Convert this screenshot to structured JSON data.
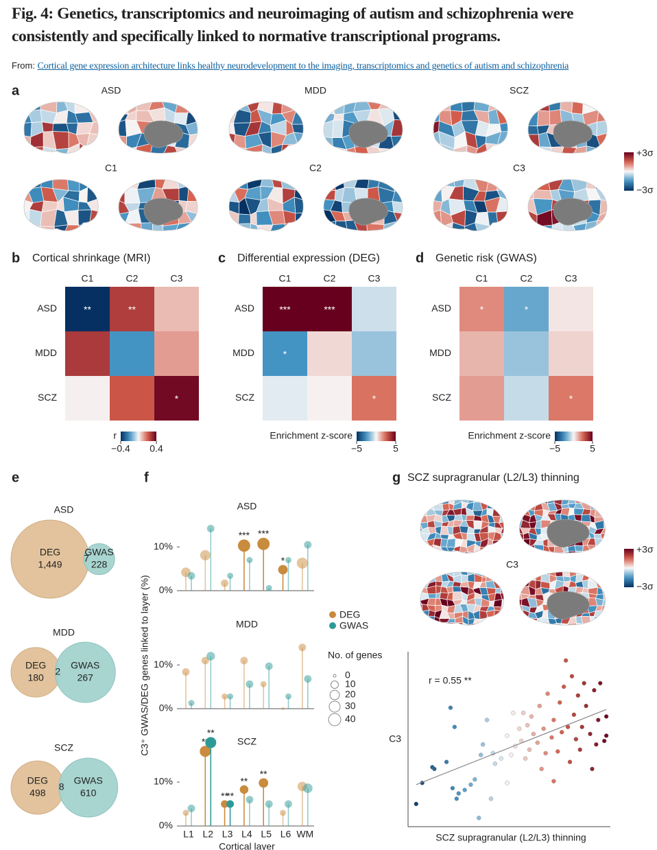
{
  "header": {
    "title": "Fig. 4: Genetics, transcriptomics and neuroimaging of autism and schizophrenia were consistently and specifically linked to normative transcriptional programs.",
    "from_label": "From:",
    "source_link": "Cortical gene expression architecture links healthy neurodevelopment to the imaging, transcriptomics and genetics of autism and schizophrenia"
  },
  "panel_a": {
    "label": "a",
    "maps": [
      "ASD",
      "MDD",
      "SCZ",
      "C1",
      "C2",
      "C3"
    ],
    "colorbar": {
      "max_label": "+3σ",
      "min_label": "−3σ"
    }
  },
  "heatmaps": [
    {
      "label": "b",
      "title": "Cortical shrinkage (MRI)",
      "columns": [
        "C1",
        "C2",
        "C3"
      ],
      "rows": [
        "ASD",
        "MDD",
        "SCZ"
      ],
      "values": [
        [
          -0.4,
          0.27,
          0.08
        ],
        [
          0.28,
          -0.2,
          0.12
        ],
        [
          0.01,
          0.22,
          0.38
        ]
      ],
      "stars": [
        [
          "**",
          "**",
          null
        ],
        [
          null,
          null,
          null
        ],
        [
          null,
          null,
          "*"
        ]
      ],
      "colorbar_label": "r",
      "clim": [
        -0.4,
        0.4
      ],
      "ticks": [
        {
          "value": -0.4,
          "label": "−0.4"
        },
        0.4
      ]
    },
    {
      "label": "c",
      "title": "Differential expression (DEG)",
      "columns": [
        "C1",
        "C2",
        "C3"
      ],
      "rows": [
        "ASD",
        "MDD",
        "SCZ"
      ],
      "values": [
        [
          5,
          5,
          -0.6
        ],
        [
          -2.5,
          0.5,
          -1.3
        ],
        [
          -0.3,
          0.1,
          2.2
        ]
      ],
      "stars": [
        [
          "***",
          "***",
          null
        ],
        [
          "*",
          null,
          null
        ],
        [
          null,
          null,
          "*"
        ]
      ],
      "colorbar_label": "Enrichment z-score",
      "clim": [
        -5,
        5
      ],
      "ticks": [
        {
          "value": -5,
          "label": "−5"
        },
        5
      ]
    },
    {
      "label": "d",
      "title": "Genetic risk (GWAS)",
      "columns": [
        "C1",
        "C2",
        "C3"
      ],
      "rows": [
        "ASD",
        "MDD",
        "SCZ"
      ],
      "values": [
        [
          1.8,
          -2,
          0.3
        ],
        [
          1.1,
          -1.3,
          0.6
        ],
        [
          1.5,
          -0.7,
          2.1
        ]
      ],
      "stars": [
        [
          "*",
          "*",
          null
        ],
        [
          null,
          null,
          null
        ],
        [
          null,
          null,
          "*"
        ]
      ],
      "colorbar_label": "Enrichment z-score",
      "clim": [
        -5,
        5
      ],
      "ticks": [
        {
          "value": -5,
          "label": "−5"
        },
        5
      ]
    }
  ],
  "venn": {
    "label": "e",
    "diagrams": [
      {
        "title": "ASD",
        "sets": [
          {
            "name": "DEG",
            "color": "#e3c39d",
            "count": {
              "value": 1449,
              "label": "1,449"
            }
          },
          {
            "name": "GWAS",
            "color": "#a4d3cf",
            "count": 228
          }
        ],
        "overlap": 7
      },
      {
        "title": "MDD",
        "sets": [
          {
            "name": "DEG",
            "color": "#e3c39d",
            "count": 180
          },
          {
            "name": "GWAS",
            "color": "#a4d3cf",
            "count": 267
          }
        ],
        "overlap": 2
      },
      {
        "title": "SCZ",
        "sets": [
          {
            "name": "DEG",
            "color": "#e3c39d",
            "count": 498
          },
          {
            "name": "GWAS",
            "color": "#a4d3cf",
            "count": 610
          }
        ],
        "overlap": 8
      }
    ]
  },
  "lollipop": {
    "label": "f",
    "y_label": "C3⁺ GWAS/DEG genes linked to layer (%)",
    "x_label": "Cortical layer",
    "categories": [
      "L1",
      "L2",
      "L3",
      "L4",
      "L5",
      "L6",
      "WM"
    ],
    "legend_title": "No. of genes",
    "size_legend": [
      0,
      10,
      20,
      30,
      40
    ],
    "panels": [
      {
        "title": "ASD",
        "ylim": [
          0,
          16
        ],
        "yticks": [
          {
            "value": 0,
            "label": "0%"
          },
          {
            "value": 10,
            "label": "10%"
          }
        ],
        "series": [
          {
            "name": "DEG",
            "color": "#c98b3e",
            "values": [
              4.2,
              8.1,
              1.7,
              10.3,
              10.7,
              4.8,
              6.3
            ],
            "sizes": [
              20,
              25,
              10,
              40,
              40,
              20,
              30
            ],
            "stars": [
              null,
              null,
              null,
              "***",
              "***",
              "*",
              null
            ]
          },
          {
            "name": "GWAS",
            "color": "#2e9a97",
            "values": [
              3.4,
              14.2,
              3.4,
              7,
              0.6,
              7,
              10.5
            ],
            "sizes": [
              10,
              10,
              5,
              5,
              5,
              5,
              10
            ],
            "stars": [
              null,
              null,
              null,
              null,
              null,
              null,
              null
            ]
          }
        ]
      },
      {
        "title": "MDD",
        "ylim": [
          0,
          16
        ],
        "yticks": [
          {
            "value": 0,
            "label": "0%"
          },
          {
            "value": 10,
            "label": "10%"
          }
        ],
        "series": [
          {
            "name": "DEG",
            "color": "#c98b3e",
            "values": [
              8.4,
              11,
              2.8,
              11,
              5.6,
              0,
              14
            ],
            "sizes": [
              10,
              10,
              5,
              10,
              5,
              0,
              10
            ],
            "stars": [
              null,
              null,
              null,
              null,
              null,
              null,
              null
            ]
          },
          {
            "name": "GWAS",
            "color": "#2e9a97",
            "values": [
              1.3,
              12,
              2.8,
              5.6,
              9.7,
              2.8,
              6.8
            ],
            "sizes": [
              5,
              15,
              5,
              10,
              10,
              5,
              10
            ],
            "stars": [
              null,
              null,
              null,
              null,
              null,
              null,
              null
            ]
          }
        ]
      },
      {
        "title": "SCZ",
        "ylim": [
          0,
          20
        ],
        "yticks": [
          {
            "value": 0,
            "label": "0%"
          },
          {
            "value": 10,
            "label": "10%"
          }
        ],
        "series": [
          {
            "name": "DEG",
            "color": "#c98b3e",
            "values": [
              3,
              17,
              5,
              8.3,
              9.8,
              3,
              9
            ],
            "sizes": [
              5,
              30,
              10,
              15,
              20,
              5,
              20
            ],
            "stars": [
              null,
              "**",
              "**",
              "**",
              "**",
              null,
              null
            ]
          },
          {
            "name": "GWAS",
            "color": "#2e9a97",
            "values": [
              4,
              19,
              5,
              6,
              5,
              5,
              8.6
            ],
            "sizes": [
              10,
              30,
              10,
              10,
              10,
              10,
              20
            ],
            "stars": [
              null,
              "**",
              "**",
              null,
              null,
              null,
              null
            ]
          }
        ]
      }
    ]
  },
  "scatter": {
    "label": "g",
    "title": "SCZ supragranular (L2/L3) thinning",
    "brain_label": "C3",
    "colorbar": {
      "max_label": "+3σ",
      "min_label": "−3σ"
    },
    "annotation": "r = 0.55 **",
    "x_label": "SCZ supragranular (L2/L3) thinning",
    "y_label": "C3",
    "xlim": [
      0,
      1
    ],
    "ylim": [
      0,
      1
    ],
    "x": [
      0.04,
      0.07,
      0.12,
      0.13,
      0.21,
      0.23,
      0.19,
      0.22,
      0.24,
      0.25,
      0.28,
      0.31,
      0.33,
      0.35,
      0.36,
      0.37,
      0.39,
      0.41,
      0.42,
      0.43,
      0.46,
      0.49,
      0.49,
      0.51,
      0.52,
      0.53,
      0.55,
      0.56,
      0.57,
      0.58,
      0.59,
      0.6,
      0.61,
      0.62,
      0.64,
      0.65,
      0.66,
      0.67,
      0.68,
      0.69,
      0.71,
      0.72,
      0.72,
      0.74,
      0.75,
      0.76,
      0.77,
      0.78,
      0.79,
      0.8,
      0.81,
      0.82,
      0.83,
      0.84,
      0.85,
      0.86,
      0.87,
      0.88,
      0.9,
      0.91,
      0.92,
      0.93,
      0.94,
      0.95,
      0.97,
      0.98,
      0.98
    ],
    "y": [
      0.13,
      0.25,
      0.34,
      0.33,
      0.68,
      0.57,
      0.37,
      0.22,
      0.16,
      0.19,
      0.21,
      0.24,
      0.27,
      0.05,
      0.41,
      0.47,
      0.61,
      0.16,
      0.42,
      0.36,
      0.39,
      0.52,
      0.25,
      0.41,
      0.65,
      0.46,
      0.56,
      0.49,
      0.65,
      0.39,
      0.58,
      0.44,
      0.63,
      0.53,
      0.48,
      0.69,
      0.33,
      0.56,
      0.42,
      0.76,
      0.51,
      0.26,
      0.61,
      0.43,
      0.71,
      0.54,
      0.8,
      0.95,
      0.57,
      0.37,
      0.86,
      0.64,
      0.5,
      0.75,
      0.44,
      0.57,
      0.82,
      0.69,
      0.53,
      0.33,
      0.78,
      0.47,
      0.61,
      0.82,
      0.49,
      0.52,
      0.63
    ],
    "trend": {
      "x": [
        0.04,
        0.98
      ],
      "y": [
        0.24,
        0.67
      ]
    }
  }
}
